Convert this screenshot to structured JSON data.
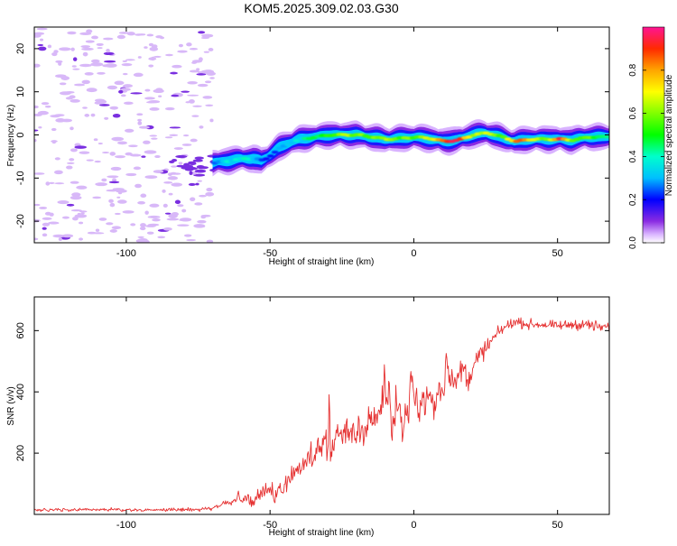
{
  "title": "KOM5.2025.309.02.03.G30",
  "colors": {
    "snr_line": "#e53030",
    "speckle_light": "#d8b8f8",
    "speckle_dark": "#7a2fe0"
  },
  "chart_data": [
    {
      "id": "spectrogram",
      "type": "heatmap",
      "xlabel": "Height of straight line (km)",
      "ylabel": "Frequency (Hz)",
      "xlim": [
        -132,
        68
      ],
      "ylim": [
        -25,
        25
      ],
      "xticks": [
        -100,
        -50,
        0,
        50
      ],
      "yticks": [
        -20,
        -10,
        0,
        10,
        20
      ],
      "xtick_labels": [
        "-100",
        "-50",
        "0",
        "50"
      ],
      "ytick_labels": [
        "-20",
        "-10",
        "0",
        "10",
        "20"
      ],
      "noise_region_x": [
        -132,
        -70
      ],
      "ridge": {
        "x": [
          -70,
          -65,
          -60,
          -56,
          -53,
          -50,
          -47,
          -44,
          -40,
          -35,
          -30,
          -25,
          -20,
          -15,
          -10,
          -5,
          0,
          5,
          10,
          15,
          20,
          25,
          30,
          35,
          40,
          45,
          50,
          55,
          60,
          65,
          68
        ],
        "freq": [
          -6.5,
          -6,
          -5.5,
          -5.5,
          -6,
          -4.5,
          -3,
          -2,
          -1,
          -0.5,
          0,
          0,
          0,
          -0.5,
          -1,
          -0.8,
          -0.5,
          -0.8,
          -1.5,
          -1.2,
          0,
          0.5,
          -0.5,
          -1.5,
          -1,
          -1,
          -1,
          -1.2,
          -0.5,
          -0.5,
          -0.3
        ],
        "amp": [
          0.3,
          0.35,
          0.4,
          0.3,
          0.2,
          0.25,
          0.3,
          0.35,
          0.4,
          0.5,
          0.55,
          0.6,
          0.6,
          0.55,
          0.6,
          0.55,
          0.6,
          0.65,
          0.9,
          0.9,
          0.6,
          0.7,
          0.5,
          0.9,
          0.7,
          0.6,
          0.9,
          0.5,
          0.6,
          0.4,
          0.4
        ]
      }
    },
    {
      "id": "colorbar",
      "type": "colorbar",
      "label": "Normalized spectral amplitude",
      "range": [
        0,
        1
      ],
      "ticks": [
        0.0,
        0.2,
        0.4,
        0.6,
        0.8
      ],
      "tick_labels": [
        "0.0",
        "0.2",
        "0.4",
        "0.6",
        "0.8"
      ]
    },
    {
      "id": "snr",
      "type": "line",
      "xlabel": "Height of straight line (km)",
      "ylabel": "SNR (v/v)",
      "xlim": [
        -132,
        68
      ],
      "ylim": [
        0,
        710
      ],
      "xticks": [
        -100,
        -50,
        0,
        50
      ],
      "yticks": [
        200,
        400,
        600
      ],
      "xtick_labels": [
        "-100",
        "-50",
        "0",
        "50"
      ],
      "ytick_labels": [
        "200",
        "400",
        "600"
      ],
      "trend": {
        "x": [
          -132,
          -75,
          -70,
          -65,
          -60,
          -55,
          -50,
          -45,
          -40,
          -35,
          -30,
          -25,
          -20,
          -15,
          -10,
          -5,
          0,
          5,
          10,
          15,
          20,
          25,
          30,
          35,
          40,
          45,
          50,
          55,
          60,
          65,
          68
        ],
        "y": [
          15,
          15,
          22,
          40,
          45,
          60,
          80,
          110,
          150,
          200,
          250,
          270,
          290,
          320,
          330,
          320,
          350,
          380,
          420,
          450,
          490,
          540,
          600,
          630,
          620,
          620,
          615,
          620,
          620,
          610,
          610
        ]
      },
      "noise_amplitude": {
        "x": [
          -132,
          -75,
          -65,
          -50,
          -40,
          -20,
          0,
          20,
          30,
          50,
          68
        ],
        "a": [
          5,
          6,
          15,
          60,
          80,
          110,
          110,
          80,
          35,
          30,
          45
        ]
      }
    }
  ]
}
